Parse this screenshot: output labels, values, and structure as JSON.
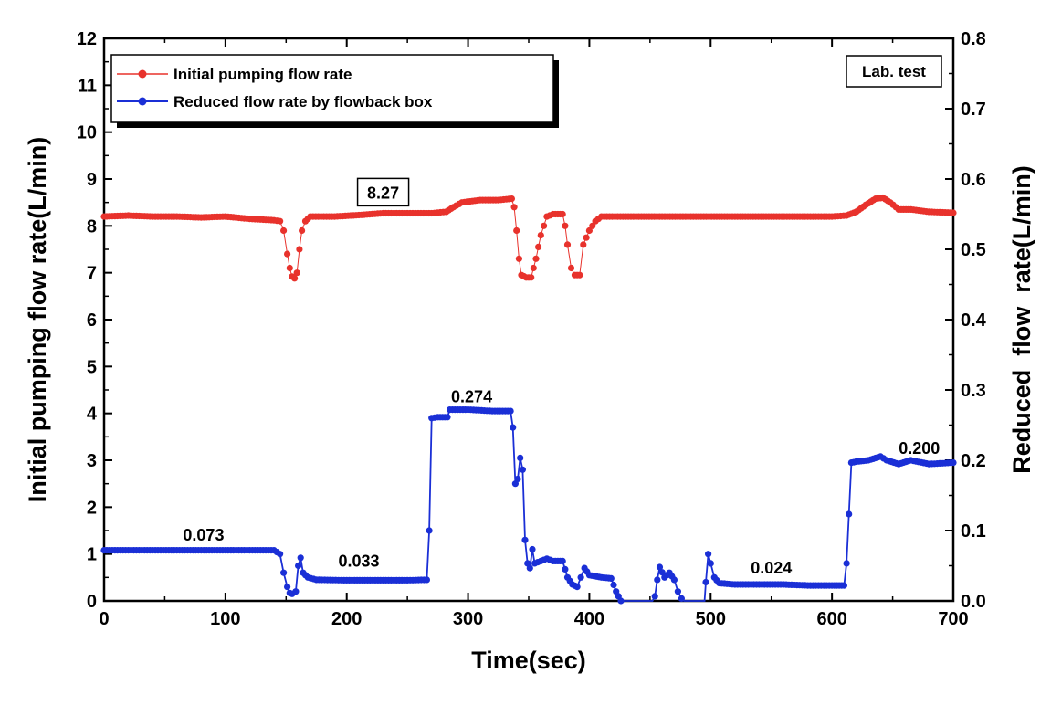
{
  "chart_data": {
    "type": "line",
    "xlabel": "Time(sec)",
    "ylabel_left": "Initial pumping flow rate(L/min)",
    "ylabel_right": "Reduced  flow  rate(L/min)",
    "xlim": [
      0,
      700
    ],
    "ylim_left": [
      0,
      12
    ],
    "ylim_right": [
      0,
      0.8
    ],
    "xticks": [
      "0",
      "100",
      "200",
      "300",
      "400",
      "500",
      "600",
      "700"
    ],
    "yticks_left": [
      "0",
      "1",
      "2",
      "3",
      "4",
      "5",
      "6",
      "7",
      "8",
      "9",
      "10",
      "11",
      "12"
    ],
    "yticks_right": [
      "0.0",
      "0.1",
      "0.2",
      "0.3",
      "0.4",
      "0.5",
      "0.6",
      "0.7",
      "0.8"
    ],
    "grid": false,
    "legend_position": "top-left",
    "colors": {
      "initial": "#e8322c",
      "reduced": "#1a2fd6"
    },
    "annotations": [
      {
        "text": "8.27",
        "x": 230,
        "y": 8.7,
        "boxed": true
      },
      {
        "text": "0.073",
        "x": 82,
        "y": 1.4,
        "boxed": false
      },
      {
        "text": "0.033",
        "x": 210,
        "y": 0.85,
        "boxed": false
      },
      {
        "text": "0.274",
        "x": 303,
        "y": 4.35,
        "boxed": false
      },
      {
        "text": "0.024",
        "x": 550,
        "y": 0.7,
        "boxed": false
      },
      {
        "text": "0.200",
        "x": 672,
        "y": 3.25,
        "boxed": false
      }
    ],
    "label_box": "Lab. test",
    "series": [
      {
        "name": "Initial pumping flow rate",
        "axis": "left",
        "points": [
          [
            0,
            8.2
          ],
          [
            20,
            8.22
          ],
          [
            40,
            8.2
          ],
          [
            60,
            8.2
          ],
          [
            80,
            8.18
          ],
          [
            100,
            8.2
          ],
          [
            120,
            8.15
          ],
          [
            140,
            8.12
          ],
          [
            145,
            8.1
          ],
          [
            148,
            7.9
          ],
          [
            151,
            7.4
          ],
          [
            153,
            7.1
          ],
          [
            155,
            6.92
          ],
          [
            157,
            6.88
          ],
          [
            159,
            7.0
          ],
          [
            161,
            7.5
          ],
          [
            163,
            7.9
          ],
          [
            166,
            8.1
          ],
          [
            170,
            8.2
          ],
          [
            190,
            8.2
          ],
          [
            210,
            8.23
          ],
          [
            230,
            8.27
          ],
          [
            250,
            8.27
          ],
          [
            270,
            8.27
          ],
          [
            282,
            8.3
          ],
          [
            288,
            8.4
          ],
          [
            295,
            8.5
          ],
          [
            310,
            8.55
          ],
          [
            325,
            8.55
          ],
          [
            336,
            8.58
          ],
          [
            338,
            8.4
          ],
          [
            340,
            7.9
          ],
          [
            342,
            7.3
          ],
          [
            344,
            6.95
          ],
          [
            348,
            6.9
          ],
          [
            352,
            6.9
          ],
          [
            356,
            7.3
          ],
          [
            360,
            7.8
          ],
          [
            365,
            8.2
          ],
          [
            370,
            8.25
          ],
          [
            378,
            8.25
          ],
          [
            380,
            8.0
          ],
          [
            382,
            7.6
          ],
          [
            385,
            7.1
          ],
          [
            388,
            6.95
          ],
          [
            392,
            6.95
          ],
          [
            395,
            7.6
          ],
          [
            400,
            7.9
          ],
          [
            405,
            8.1
          ],
          [
            410,
            8.2
          ],
          [
            430,
            8.2
          ],
          [
            460,
            8.2
          ],
          [
            490,
            8.2
          ],
          [
            520,
            8.2
          ],
          [
            550,
            8.2
          ],
          [
            580,
            8.2
          ],
          [
            600,
            8.2
          ],
          [
            612,
            8.22
          ],
          [
            620,
            8.3
          ],
          [
            628,
            8.45
          ],
          [
            636,
            8.58
          ],
          [
            642,
            8.6
          ],
          [
            648,
            8.5
          ],
          [
            655,
            8.35
          ],
          [
            665,
            8.35
          ],
          [
            680,
            8.3
          ],
          [
            700,
            8.28
          ]
        ]
      },
      {
        "name": "Reduced flow rate by flowback box",
        "axis": "left",
        "points": [
          [
            0,
            1.08
          ],
          [
            20,
            1.08
          ],
          [
            40,
            1.08
          ],
          [
            60,
            1.08
          ],
          [
            80,
            1.08
          ],
          [
            100,
            1.08
          ],
          [
            120,
            1.08
          ],
          [
            140,
            1.08
          ],
          [
            145,
            1.0
          ],
          [
            148,
            0.6
          ],
          [
            151,
            0.3
          ],
          [
            153,
            0.17
          ],
          [
            155,
            0.15
          ],
          [
            158,
            0.2
          ],
          [
            160,
            0.75
          ],
          [
            162,
            0.92
          ],
          [
            164,
            0.6
          ],
          [
            168,
            0.5
          ],
          [
            175,
            0.45
          ],
          [
            200,
            0.44
          ],
          [
            230,
            0.44
          ],
          [
            250,
            0.44
          ],
          [
            266,
            0.45
          ],
          [
            268,
            1.5
          ],
          [
            270,
            3.9
          ],
          [
            275,
            3.92
          ],
          [
            283,
            3.92
          ],
          [
            285,
            4.08
          ],
          [
            300,
            4.08
          ],
          [
            320,
            4.05
          ],
          [
            335,
            4.05
          ],
          [
            337,
            3.7
          ],
          [
            339,
            2.5
          ],
          [
            341,
            2.6
          ],
          [
            343,
            3.05
          ],
          [
            345,
            2.8
          ],
          [
            347,
            1.3
          ],
          [
            349,
            0.8
          ],
          [
            351,
            0.7
          ],
          [
            353,
            1.1
          ],
          [
            355,
            0.8
          ],
          [
            360,
            0.85
          ],
          [
            365,
            0.9
          ],
          [
            370,
            0.85
          ],
          [
            378,
            0.85
          ],
          [
            382,
            0.5
          ],
          [
            386,
            0.35
          ],
          [
            390,
            0.3
          ],
          [
            393,
            0.5
          ],
          [
            396,
            0.7
          ],
          [
            400,
            0.55
          ],
          [
            410,
            0.5
          ],
          [
            418,
            0.48
          ],
          [
            422,
            0.2
          ],
          [
            426,
            0.0
          ],
          [
            428,
            -0.2
          ],
          [
            452,
            -0.2
          ],
          [
            454,
            0.1
          ],
          [
            456,
            0.45
          ],
          [
            458,
            0.72
          ],
          [
            462,
            0.5
          ],
          [
            466,
            0.6
          ],
          [
            470,
            0.45
          ],
          [
            473,
            0.2
          ],
          [
            476,
            0.05
          ],
          [
            478,
            -0.2
          ],
          [
            495,
            -0.2
          ],
          [
            496,
            0.4
          ],
          [
            498,
            1.0
          ],
          [
            500,
            0.8
          ],
          [
            503,
            0.5
          ],
          [
            507,
            0.38
          ],
          [
            520,
            0.35
          ],
          [
            540,
            0.35
          ],
          [
            560,
            0.35
          ],
          [
            580,
            0.33
          ],
          [
            600,
            0.33
          ],
          [
            610,
            0.33
          ],
          [
            612,
            0.8
          ],
          [
            614,
            1.85
          ],
          [
            616,
            2.95
          ],
          [
            620,
            2.97
          ],
          [
            630,
            3.0
          ],
          [
            640,
            3.08
          ],
          [
            645,
            3.0
          ],
          [
            655,
            2.92
          ],
          [
            665,
            3.0
          ],
          [
            680,
            2.92
          ],
          [
            700,
            2.95
          ]
        ]
      }
    ]
  }
}
